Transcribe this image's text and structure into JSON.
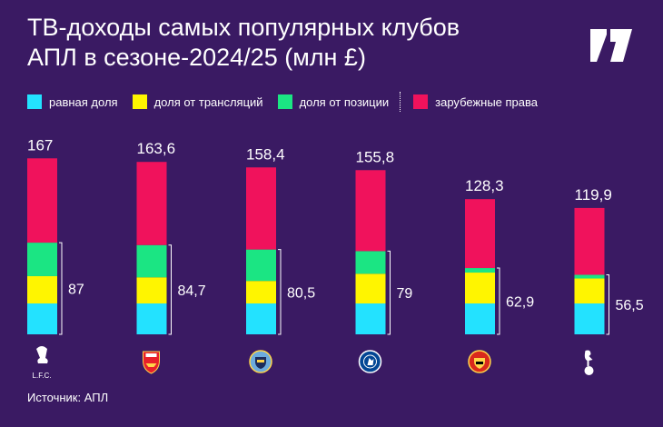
{
  "title": {
    "line1": "ТВ-доходы самых популярных клубов",
    "line2": "АПЛ в сезоне-2024/25 (млн £)"
  },
  "logo_icon": "brand-logo-icon",
  "legend": [
    {
      "label": "равная доля",
      "color": "#23e2ff"
    },
    {
      "label": "доля от трансляций",
      "color": "#fff500"
    },
    {
      "label": "доля от позиции",
      "color": "#1be583"
    },
    {
      "label": "зарубежные права",
      "color": "#f0125c"
    }
  ],
  "source": "Источник: АПЛ",
  "chart_data": {
    "type": "bar",
    "stacked": true,
    "categories": [
      "Liverpool",
      "Arsenal",
      "Manchester City",
      "Chelsea",
      "Manchester United",
      "Tottenham"
    ],
    "club_icons": [
      "liverpool-crest-icon",
      "arsenal-crest-icon",
      "man-city-crest-icon",
      "chelsea-crest-icon",
      "man-united-crest-icon",
      "tottenham-crest-icon"
    ],
    "crest_text": [
      "L.F.C."
    ],
    "series": [
      {
        "name": "равная доля",
        "color": "#23e2ff",
        "values": [
          29.3,
          29.3,
          29.3,
          29.3,
          29.3,
          29.3
        ]
      },
      {
        "name": "доля от трансляций",
        "color": "#fff500",
        "values": [
          25.9,
          24.8,
          21.4,
          28.2,
          29.3,
          23.7
        ]
      },
      {
        "name": "доля от позиции",
        "color": "#1be583",
        "values": [
          31.8,
          30.6,
          29.8,
          21.5,
          4.3,
          3.5
        ]
      },
      {
        "name": "зарубежные права",
        "color": "#f0125c",
        "values": [
          80.0,
          78.9,
          77.9,
          76.8,
          65.4,
          63.4
        ]
      }
    ],
    "totals": [
      "167",
      "163,6",
      "158,4",
      "155,8",
      "128,3",
      "119,9"
    ],
    "domestic_totals": [
      "87",
      "84,7",
      "80,5",
      "79",
      "62,9",
      "56,5"
    ],
    "ylim": [
      0,
      170
    ],
    "grid": false,
    "legend_position": "top"
  }
}
